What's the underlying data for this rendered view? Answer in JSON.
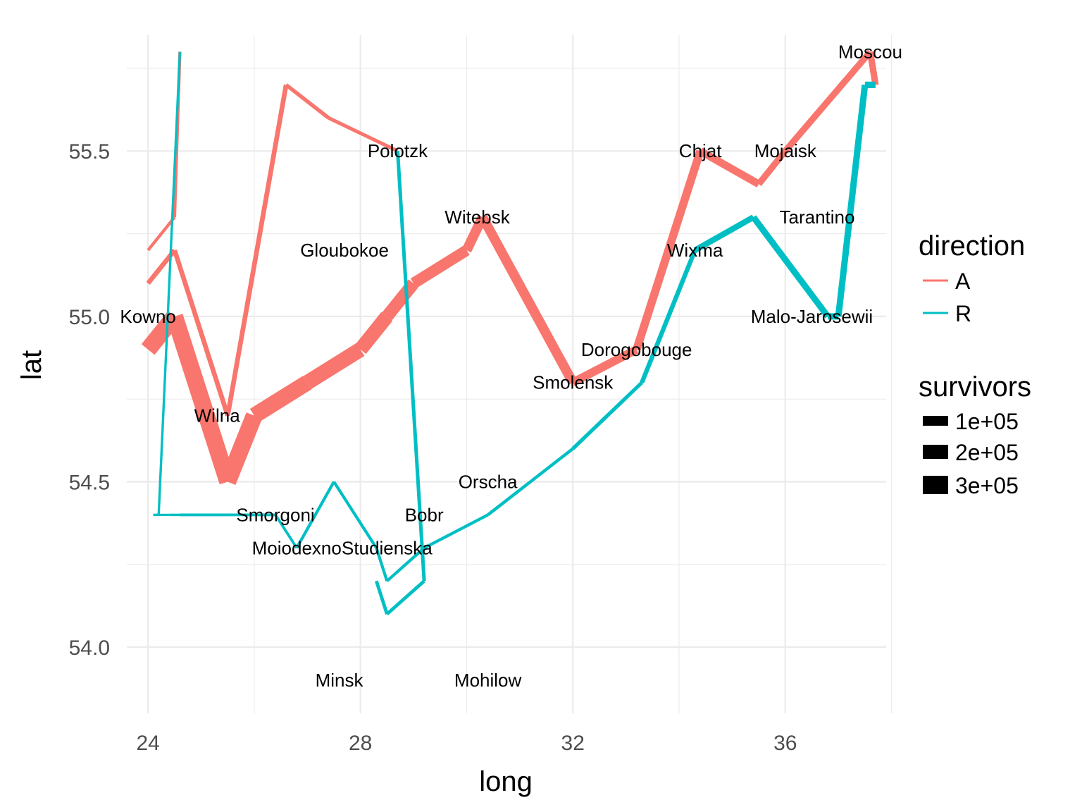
{
  "chart_data": {
    "type": "line",
    "xlabel": "long",
    "ylabel": "lat",
    "xlim": [
      23.6,
      37.9
    ],
    "ylim": [
      53.8,
      55.85
    ],
    "x_ticks": [
      24,
      28,
      32,
      36
    ],
    "x_tick_labels": [
      "24",
      "28",
      "32",
      "36"
    ],
    "x_minor": [
      26,
      30,
      34,
      38
    ],
    "y_ticks": [
      54.0,
      54.5,
      55.0,
      55.5
    ],
    "y_tick_labels": [
      "54.0",
      "54.5",
      "55.0",
      "55.5"
    ],
    "y_minor": [
      54.25,
      54.75,
      55.25,
      55.75
    ],
    "grid": true,
    "legend_position": "right",
    "legend": {
      "direction": {
        "title": "direction",
        "entries": [
          {
            "label": "A",
            "color": "#F8766D"
          },
          {
            "label": "R",
            "color": "#00BFC4"
          }
        ]
      },
      "survivors": {
        "title": "survivors",
        "entries": [
          {
            "label": "1e+05",
            "value": 100000
          },
          {
            "label": "2e+05",
            "value": 200000
          },
          {
            "label": "3e+05",
            "value": 300000
          }
        ]
      }
    },
    "series": [
      {
        "direction": "A",
        "group": 1,
        "color": "#F8766D",
        "points": [
          {
            "long": 24.0,
            "lat": 54.9,
            "survivors": 340000
          },
          {
            "long": 24.5,
            "lat": 55.0,
            "survivors": 340000
          },
          {
            "long": 25.5,
            "lat": 54.5,
            "survivors": 340000
          },
          {
            "long": 26.0,
            "lat": 54.7,
            "survivors": 320000
          },
          {
            "long": 27.0,
            "lat": 54.8,
            "survivors": 300000
          },
          {
            "long": 28.0,
            "lat": 54.9,
            "survivors": 280000
          },
          {
            "long": 28.5,
            "lat": 55.0,
            "survivors": 240000
          },
          {
            "long": 29.0,
            "lat": 55.1,
            "survivors": 210000
          },
          {
            "long": 30.0,
            "lat": 55.2,
            "survivors": 180000
          },
          {
            "long": 30.3,
            "lat": 55.3,
            "survivors": 175000
          },
          {
            "long": 32.0,
            "lat": 54.8,
            "survivors": 145000
          },
          {
            "long": 33.2,
            "lat": 54.9,
            "survivors": 140000
          },
          {
            "long": 34.4,
            "lat": 55.5,
            "survivors": 127100
          },
          {
            "long": 35.5,
            "lat": 55.4,
            "survivors": 100000
          },
          {
            "long": 36.0,
            "lat": 55.5,
            "survivors": 100000
          },
          {
            "long": 37.6,
            "lat": 55.8,
            "survivors": 100000
          },
          {
            "long": 37.7,
            "lat": 55.7,
            "survivors": 100000
          }
        ]
      },
      {
        "direction": "R",
        "group": 1,
        "color": "#00BFC4",
        "points": [
          {
            "long": 37.7,
            "lat": 55.7,
            "survivors": 100000
          },
          {
            "long": 37.5,
            "lat": 55.7,
            "survivors": 98000
          },
          {
            "long": 37.0,
            "lat": 55.0,
            "survivors": 97000
          },
          {
            "long": 36.8,
            "lat": 55.0,
            "survivors": 96000
          },
          {
            "long": 35.4,
            "lat": 55.3,
            "survivors": 87000
          },
          {
            "long": 34.3,
            "lat": 55.2,
            "survivors": 55000
          },
          {
            "long": 33.3,
            "lat": 54.8,
            "survivors": 37000
          },
          {
            "long": 32.0,
            "lat": 54.6,
            "survivors": 24000
          },
          {
            "long": 30.4,
            "lat": 54.4,
            "survivors": 20000
          },
          {
            "long": 29.2,
            "lat": 54.3,
            "survivors": 20000
          },
          {
            "long": 28.5,
            "lat": 54.2,
            "survivors": 20000
          },
          {
            "long": 28.3,
            "lat": 54.3,
            "survivors": 20000
          },
          {
            "long": 27.5,
            "lat": 54.5,
            "survivors": 20000
          },
          {
            "long": 26.8,
            "lat": 54.3,
            "survivors": 12000
          },
          {
            "long": 26.4,
            "lat": 54.4,
            "survivors": 14000
          },
          {
            "long": 24.6,
            "lat": 54.4,
            "survivors": 8000
          },
          {
            "long": 24.4,
            "lat": 54.4,
            "survivors": 4000
          },
          {
            "long": 24.2,
            "lat": 54.4,
            "survivors": 4000
          },
          {
            "long": 24.1,
            "lat": 54.4,
            "survivors": 4000
          }
        ]
      },
      {
        "direction": "A",
        "group": 2,
        "color": "#F8766D",
        "points": [
          {
            "long": 24.0,
            "lat": 55.1,
            "survivors": 60000
          },
          {
            "long": 24.5,
            "lat": 55.2,
            "survivors": 60000
          },
          {
            "long": 25.5,
            "lat": 54.7,
            "survivors": 60000
          },
          {
            "long": 26.6,
            "lat": 55.7,
            "survivors": 40000
          },
          {
            "long": 27.4,
            "lat": 55.6,
            "survivors": 33000
          },
          {
            "long": 28.7,
            "lat": 55.5,
            "survivors": 33000
          }
        ]
      },
      {
        "direction": "R",
        "group": 2,
        "color": "#00BFC4",
        "points": [
          {
            "long": 28.7,
            "lat": 55.5,
            "survivors": 33000
          },
          {
            "long": 29.2,
            "lat": 54.2,
            "survivors": 30000
          },
          {
            "long": 28.5,
            "lat": 54.1,
            "survivors": 30000
          },
          {
            "long": 28.3,
            "lat": 54.2,
            "survivors": 28000
          }
        ]
      },
      {
        "direction": "A",
        "group": 3,
        "color": "#F8766D",
        "points": [
          {
            "long": 24.0,
            "lat": 55.2,
            "survivors": 22000
          },
          {
            "long": 24.5,
            "lat": 55.3,
            "survivors": 22000
          },
          {
            "long": 24.6,
            "lat": 55.8,
            "survivors": 6000
          }
        ]
      },
      {
        "direction": "R",
        "group": 3,
        "color": "#00BFC4",
        "points": [
          {
            "long": 24.6,
            "lat": 55.8,
            "survivors": 6000
          },
          {
            "long": 24.2,
            "lat": 54.4,
            "survivors": 6000
          },
          {
            "long": 24.1,
            "lat": 54.4,
            "survivors": 6000
          }
        ]
      }
    ],
    "cities": [
      {
        "name": "Kowno",
        "long": 24.0,
        "lat": 55.0
      },
      {
        "name": "Wilna",
        "long": 25.3,
        "lat": 54.7
      },
      {
        "name": "Smorgoni",
        "long": 26.4,
        "lat": 54.4
      },
      {
        "name": "Moiodexno",
        "long": 26.8,
        "lat": 54.3
      },
      {
        "name": "Gloubokoe",
        "long": 27.7,
        "lat": 55.2
      },
      {
        "name": "Minsk",
        "long": 27.6,
        "lat": 53.9
      },
      {
        "name": "Studienska",
        "long": 28.5,
        "lat": 54.3
      },
      {
        "name": "Polotzk",
        "long": 28.7,
        "lat": 55.5
      },
      {
        "name": "Bobr",
        "long": 29.2,
        "lat": 54.4
      },
      {
        "name": "Witebsk",
        "long": 30.2,
        "lat": 55.3
      },
      {
        "name": "Orscha",
        "long": 30.4,
        "lat": 54.5
      },
      {
        "name": "Mohilow",
        "long": 30.4,
        "lat": 53.9
      },
      {
        "name": "Smolensk",
        "long": 32.0,
        "lat": 54.8
      },
      {
        "name": "Dorogobouge",
        "long": 33.2,
        "lat": 54.9
      },
      {
        "name": "Wixma",
        "long": 34.3,
        "lat": 55.2
      },
      {
        "name": "Chjat",
        "long": 34.4,
        "lat": 55.5
      },
      {
        "name": "Mojaisk",
        "long": 36.0,
        "lat": 55.5
      },
      {
        "name": "Moscou",
        "long": 37.6,
        "lat": 55.8
      },
      {
        "name": "Tarantino",
        "long": 36.6,
        "lat": 55.3
      },
      {
        "name": "Malo-Jarosewii",
        "long": 36.5,
        "lat": 55.0
      }
    ]
  }
}
